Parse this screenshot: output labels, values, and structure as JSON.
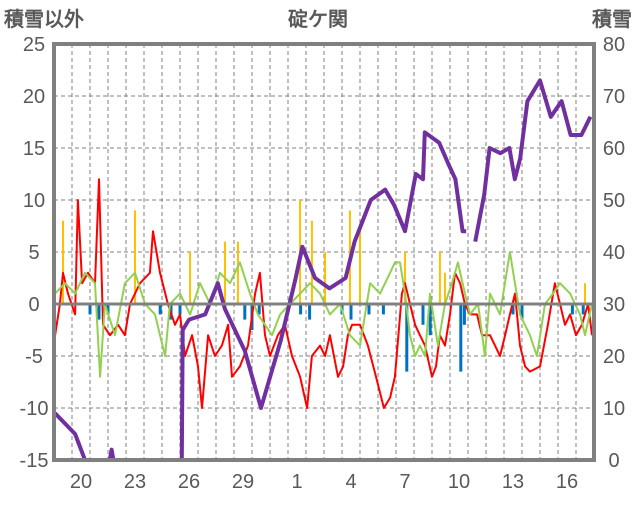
{
  "chart_data": {
    "type": "line",
    "title": "碇ケ関",
    "ylabel_left": "積雪以外",
    "ylabel_right": "積雪",
    "ylim_left": [
      -15,
      25
    ],
    "ylim_right": [
      0,
      80
    ],
    "yticks_left": [
      25,
      20,
      15,
      10,
      5,
      0,
      -5,
      -10,
      -15
    ],
    "yticks_right": [
      80,
      70,
      60,
      50,
      40,
      30,
      20,
      10,
      0
    ],
    "x_unit": "days since the start of day 19",
    "xlim": [
      0,
      30
    ],
    "xtick_labels": [
      {
        "day": 1.5,
        "label": "20"
      },
      {
        "day": 4.5,
        "label": "23"
      },
      {
        "day": 7.5,
        "label": "26"
      },
      {
        "day": 10.5,
        "label": "29"
      },
      {
        "day": 13.5,
        "label": "1"
      },
      {
        "day": 16.5,
        "label": "4"
      },
      {
        "day": 19.5,
        "label": "7"
      },
      {
        "day": 22.5,
        "label": "10"
      },
      {
        "day": 25.5,
        "label": "13"
      },
      {
        "day": 28.5,
        "label": "16"
      }
    ],
    "grid": true,
    "colors": {
      "temperature": "#ff0000",
      "green_series": "#92d050",
      "precip_pos": "#ffc000",
      "precip_neg": "#0070c0",
      "snow": "#7030a0",
      "axis": "#808080"
    },
    "series": [
      {
        "name": "red",
        "axis": "left",
        "points": [
          [
            0.06,
            -3
          ],
          [
            0.33,
            0
          ],
          [
            0.5,
            3
          ],
          [
            0.78,
            1
          ],
          [
            1.17,
            -1
          ],
          [
            1.33,
            10
          ],
          [
            1.56,
            2
          ],
          [
            1.89,
            3
          ],
          [
            2.28,
            2
          ],
          [
            2.5,
            12
          ],
          [
            2.72,
            -2
          ],
          [
            3.11,
            -3
          ],
          [
            3.56,
            -2
          ],
          [
            3.94,
            -3
          ],
          [
            4.22,
            0
          ],
          [
            4.78,
            2
          ],
          [
            5.33,
            3
          ],
          [
            5.5,
            7
          ],
          [
            5.89,
            3
          ],
          [
            6.33,
            0
          ],
          [
            6.72,
            -2
          ],
          [
            7,
            -1
          ],
          [
            7.28,
            -5
          ],
          [
            7.67,
            -3
          ],
          [
            8,
            -6
          ],
          [
            8.22,
            -10
          ],
          [
            8.56,
            -3
          ],
          [
            8.94,
            -5
          ],
          [
            9.33,
            -4
          ],
          [
            9.67,
            -2
          ],
          [
            9.89,
            -7
          ],
          [
            10.33,
            -6
          ],
          [
            10.78,
            -4
          ],
          [
            11.17,
            1
          ],
          [
            11.44,
            3
          ],
          [
            11.72,
            -3
          ],
          [
            12,
            -5
          ],
          [
            12.44,
            -3
          ],
          [
            12.83,
            -2
          ],
          [
            13.22,
            -5
          ],
          [
            13.67,
            -7
          ],
          [
            14.06,
            -10
          ],
          [
            14.33,
            -5
          ],
          [
            14.78,
            -4
          ],
          [
            15.06,
            -5
          ],
          [
            15.33,
            -3
          ],
          [
            15.78,
            -7
          ],
          [
            16.06,
            -6
          ],
          [
            16.33,
            -3
          ],
          [
            16.56,
            -2
          ],
          [
            17,
            -2
          ],
          [
            17.44,
            -4
          ],
          [
            17.89,
            -7
          ],
          [
            18.33,
            -10
          ],
          [
            18.67,
            -9
          ],
          [
            18.94,
            -7
          ],
          [
            19.33,
            1
          ],
          [
            19.5,
            2
          ],
          [
            19.78,
            0
          ],
          [
            20.06,
            -2
          ],
          [
            20.33,
            -3
          ],
          [
            20.61,
            -4
          ],
          [
            21,
            -7
          ],
          [
            21.22,
            -6
          ],
          [
            21.44,
            -3
          ],
          [
            21.72,
            -4
          ],
          [
            22,
            -1
          ],
          [
            22.28,
            3
          ],
          [
            22.56,
            2
          ],
          [
            22.83,
            0
          ],
          [
            23.11,
            -1
          ],
          [
            23.5,
            -1
          ],
          [
            23.78,
            -3
          ],
          [
            24.22,
            -3
          ],
          [
            24.5,
            -4
          ],
          [
            24.78,
            -5
          ],
          [
            25.06,
            -3
          ],
          [
            25.33,
            -1
          ],
          [
            25.61,
            1
          ],
          [
            25.89,
            -4
          ],
          [
            26.17,
            -6
          ],
          [
            26.44,
            -6.5
          ],
          [
            27,
            -6
          ],
          [
            27.44,
            -2
          ],
          [
            27.83,
            2
          ],
          [
            28.11,
            0
          ],
          [
            28.39,
            -2
          ],
          [
            28.67,
            -1
          ],
          [
            29,
            -3
          ],
          [
            29.33,
            -2
          ],
          [
            29.67,
            0
          ],
          [
            29.89,
            -3
          ]
        ]
      },
      {
        "name": "green",
        "axis": "left",
        "points": [
          [
            0.06,
            1
          ],
          [
            0.61,
            2
          ],
          [
            1.17,
            1
          ],
          [
            1.72,
            3
          ],
          [
            2.28,
            2
          ],
          [
            2.56,
            -7
          ],
          [
            2.83,
            0
          ],
          [
            3.39,
            -3
          ],
          [
            3.94,
            2
          ],
          [
            4.5,
            3
          ],
          [
            5.06,
            0
          ],
          [
            5.61,
            -1
          ],
          [
            5.89,
            -3
          ],
          [
            6.17,
            -5
          ],
          [
            6.44,
            0
          ],
          [
            7,
            1
          ],
          [
            7.56,
            -1
          ],
          [
            8.11,
            2
          ],
          [
            8.67,
            0
          ],
          [
            9.22,
            3
          ],
          [
            9.78,
            2
          ],
          [
            10.33,
            4
          ],
          [
            10.89,
            1
          ],
          [
            11.33,
            -1
          ],
          [
            11.72,
            -2
          ],
          [
            12.11,
            -3
          ],
          [
            12.56,
            -1
          ],
          [
            13.11,
            0
          ],
          [
            13.67,
            1
          ],
          [
            14.22,
            2
          ],
          [
            14.78,
            1
          ],
          [
            15.33,
            -1
          ],
          [
            15.89,
            0
          ],
          [
            16.44,
            -3
          ],
          [
            17,
            -4
          ],
          [
            17.56,
            2
          ],
          [
            18.11,
            1
          ],
          [
            18.67,
            3
          ],
          [
            18.94,
            4
          ],
          [
            19.22,
            4
          ],
          [
            19.5,
            1
          ],
          [
            19.78,
            -3
          ],
          [
            20.06,
            -5
          ],
          [
            20.33,
            -4
          ],
          [
            20.61,
            -5
          ],
          [
            20.89,
            1
          ],
          [
            21.33,
            -4
          ],
          [
            21.72,
            0
          ],
          [
            22.11,
            2
          ],
          [
            22.44,
            4
          ],
          [
            22.83,
            1
          ],
          [
            23.11,
            -1
          ],
          [
            23.56,
            0
          ],
          [
            23.94,
            -5
          ],
          [
            24.22,
            1
          ],
          [
            24.78,
            -1
          ],
          [
            25.33,
            5
          ],
          [
            25.89,
            -1
          ],
          [
            26.44,
            -3
          ],
          [
            26.83,
            -5
          ],
          [
            27.28,
            0
          ],
          [
            27.72,
            1
          ],
          [
            28.11,
            2
          ],
          [
            28.67,
            1
          ],
          [
            29.22,
            -1
          ],
          [
            29.5,
            -3
          ],
          [
            29.89,
            0
          ]
        ]
      },
      {
        "name": "snow",
        "axis": "right",
        "points": [
          [
            0.06,
            9
          ],
          [
            1.17,
            5
          ],
          [
            1.72,
            0
          ],
          [
            3.1,
            0
          ],
          [
            3.2,
            2
          ],
          [
            3.3,
            0
          ],
          [
            7.1,
            0
          ],
          [
            7.15,
            25
          ],
          [
            7.5,
            27
          ],
          [
            8.4,
            28
          ],
          [
            9.1,
            34
          ],
          [
            9.5,
            29
          ],
          [
            10.6,
            21
          ],
          [
            11.5,
            10
          ],
          [
            12.6,
            23
          ],
          [
            13.4,
            34.6
          ],
          [
            13.8,
            41
          ],
          [
            14.5,
            35
          ],
          [
            15.3,
            33
          ],
          [
            16.2,
            35
          ],
          [
            16.7,
            42
          ],
          [
            17.6,
            50
          ],
          [
            18.4,
            52
          ],
          [
            18.9,
            49
          ],
          [
            19.5,
            44
          ],
          [
            20.1,
            55
          ],
          [
            20.5,
            54
          ],
          [
            20.6,
            63
          ],
          [
            21.4,
            61
          ],
          [
            21.9,
            57
          ],
          [
            22.3,
            54
          ],
          [
            22.7,
            44
          ],
          [
            22.9,
            44
          ],
          null,
          [
            23.4,
            42
          ],
          [
            23.9,
            51
          ],
          [
            24.2,
            60
          ],
          [
            24.8,
            59
          ],
          [
            25.3,
            60
          ],
          [
            25.6,
            54
          ],
          [
            25.9,
            58
          ],
          [
            26.3,
            69
          ],
          [
            27,
            73
          ],
          [
            27.6,
            66
          ],
          [
            28.2,
            69
          ],
          [
            28.7,
            62.5
          ],
          [
            29.3,
            62.5
          ],
          [
            29.8,
            66
          ]
        ]
      }
    ],
    "bars_positive": [
      [
        0.5,
        8
      ],
      [
        4.5,
        9
      ],
      [
        7.56,
        5
      ],
      [
        9.5,
        6
      ],
      [
        10.22,
        6
      ],
      [
        13.67,
        10
      ],
      [
        14.33,
        8
      ],
      [
        15.06,
        5
      ],
      [
        16.44,
        9
      ],
      [
        17,
        7
      ],
      [
        19.5,
        5
      ],
      [
        21.44,
        5
      ],
      [
        21.72,
        3
      ],
      [
        29.5,
        2
      ]
    ],
    "bars_negative": [
      [
        2,
        -1
      ],
      [
        2.5,
        -1.5
      ],
      [
        3,
        -1
      ],
      [
        5.9,
        -1
      ],
      [
        6.5,
        -1.5
      ],
      [
        7,
        -1
      ],
      [
        10.6,
        -1.5
      ],
      [
        11,
        -2.5
      ],
      [
        11.4,
        -1
      ],
      [
        13.7,
        -1
      ],
      [
        14.2,
        -1.5
      ],
      [
        16,
        -1
      ],
      [
        16.5,
        -1.5
      ],
      [
        17.5,
        -1
      ],
      [
        18.3,
        -1
      ],
      [
        19.6,
        -6.5
      ],
      [
        20.5,
        -2
      ],
      [
        20.9,
        -3
      ],
      [
        22.6,
        -6.5
      ],
      [
        22.8,
        -2
      ],
      [
        25.5,
        -1
      ],
      [
        26,
        -1.5
      ],
      [
        28.8,
        -1
      ],
      [
        29.4,
        -1
      ]
    ]
  }
}
